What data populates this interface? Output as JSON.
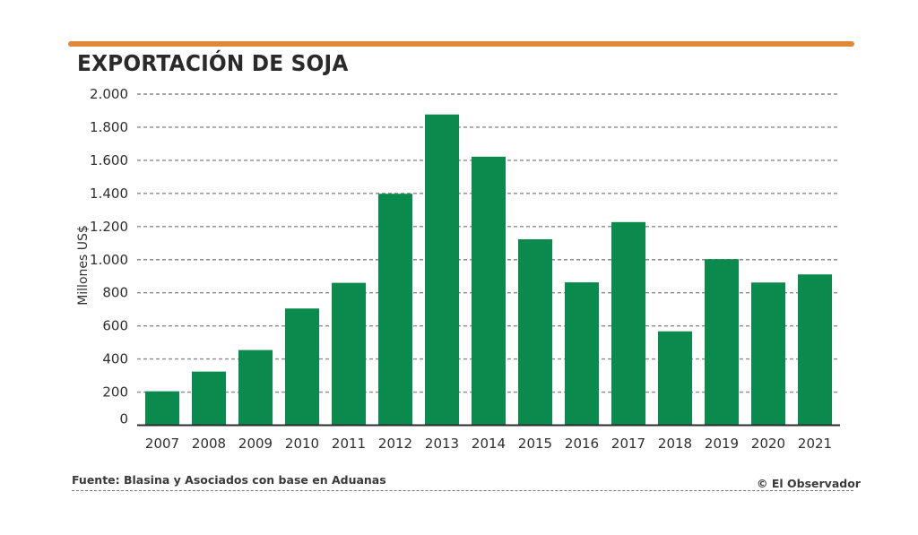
{
  "header": {
    "accent_color": "#e0883a",
    "title": "EXPORTACIÓN DE SOJA"
  },
  "chart_data": {
    "type": "bar",
    "title": "EXPORTACIÓN DE SOJA",
    "xlabel": "",
    "ylabel": "Millones US$",
    "categories": [
      "2007",
      "2008",
      "2009",
      "2010",
      "2011",
      "2012",
      "2013",
      "2014",
      "2015",
      "2016",
      "2017",
      "2018",
      "2019",
      "2020",
      "2021"
    ],
    "values": [
      205,
      324,
      454,
      705,
      860,
      1398,
      1877,
      1622,
      1123,
      863,
      1227,
      567,
      1003,
      862,
      911
    ],
    "ylim": [
      0,
      2000
    ],
    "yticks": [
      0,
      200,
      400,
      600,
      800,
      1000,
      1200,
      1400,
      1600,
      1800,
      2000
    ],
    "ytick_labels": [
      "0",
      "200",
      "400",
      "600",
      "800",
      "1.000",
      "1.200",
      "1.400",
      "1.600",
      "1.800",
      "2.000"
    ],
    "grid": true,
    "grid_style": "dashed",
    "bar_color": "#0a8a4c",
    "legend": "none"
  },
  "footer": {
    "source": "Fuente: Blasina y Asociados con base en Aduanas",
    "credit": "© El Observador"
  }
}
